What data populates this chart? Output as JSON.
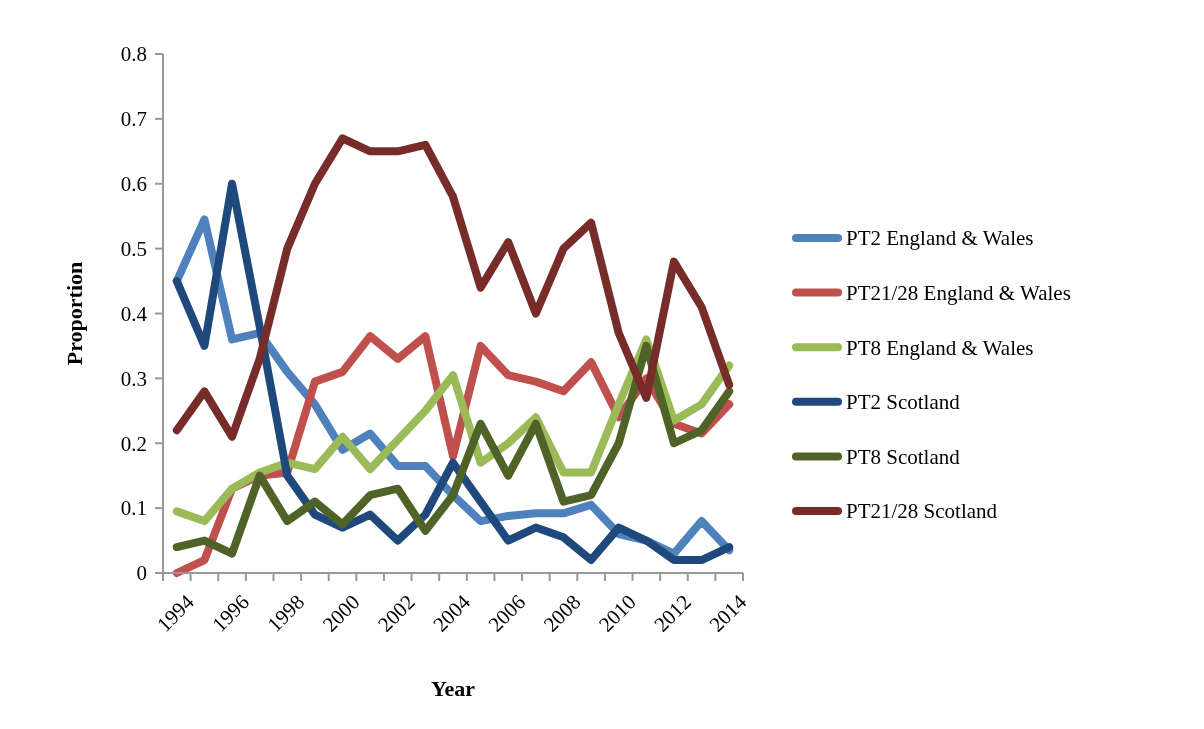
{
  "chart_data": {
    "type": "line",
    "xlabel": "Year",
    "ylabel": "Proportion",
    "categories": [
      "1994",
      null,
      "1996",
      null,
      "1998",
      null,
      "2000",
      null,
      "2002",
      null,
      "2004",
      null,
      "2006",
      null,
      "2008",
      null,
      "2010",
      null,
      "2012",
      null,
      "2014"
    ],
    "ylim": [
      0,
      0.8
    ],
    "yticks": [
      0,
      0.1,
      0.2,
      0.3,
      0.4,
      0.5,
      0.6,
      0.7,
      0.8
    ],
    "legend": "right",
    "grid": false,
    "marker": "none",
    "line_style": "solid",
    "series": [
      {
        "name": "PT2 England & Wales",
        "color": "#4f81bd",
        "values": [
          0.45,
          0.545,
          0.36,
          0.37,
          0.31,
          0.26,
          0.19,
          0.215,
          0.165,
          0.165,
          0.12,
          0.08,
          0.088,
          0.092,
          0.092,
          0.105,
          0.06,
          0.05,
          0.03,
          0.08,
          0.035
        ]
      },
      {
        "name": "PT21/28 England & Wales",
        "color": "#c0504d",
        "values": [
          0,
          0.02,
          0.13,
          0.15,
          0.155,
          0.295,
          0.31,
          0.365,
          0.33,
          0.365,
          0.18,
          0.35,
          0.305,
          0.295,
          0.28,
          0.325,
          0.24,
          0.3,
          0.23,
          0.215,
          0.26
        ]
      },
      {
        "name": "PT8 England & Wales",
        "color": "#9bbb59",
        "values": [
          0.095,
          0.08,
          0.13,
          0.155,
          0.17,
          0.16,
          0.21,
          0.16,
          0.205,
          0.25,
          0.305,
          0.17,
          0.2,
          0.24,
          0.155,
          0.155,
          0.26,
          0.36,
          0.235,
          0.26,
          0.32
        ]
      },
      {
        "name": "PT2 Scotland",
        "color": "#1f497d",
        "values": [
          0.45,
          0.35,
          0.6,
          0.38,
          0.15,
          0.09,
          0.07,
          0.09,
          0.05,
          0.09,
          0.17,
          0.11,
          0.05,
          0.07,
          0.055,
          0.02,
          0.07,
          0.05,
          0.02,
          0.02,
          0.04
        ]
      },
      {
        "name": "PT8 Scotland",
        "color": "#4f6228",
        "values": [
          0.04,
          0.05,
          0.03,
          0.15,
          0.08,
          0.11,
          0.075,
          0.12,
          0.13,
          0.065,
          0.12,
          0.23,
          0.15,
          0.23,
          0.11,
          0.12,
          0.2,
          0.35,
          0.2,
          0.22,
          0.28
        ]
      },
      {
        "name": "PT21/28 Scotland",
        "color": "#772c2a",
        "values": [
          0.22,
          0.28,
          0.21,
          0.33,
          0.5,
          0.6,
          0.67,
          0.65,
          0.65,
          0.66,
          0.58,
          0.44,
          0.51,
          0.4,
          0.5,
          0.54,
          0.37,
          0.27,
          0.48,
          0.41,
          0.29
        ]
      }
    ]
  }
}
